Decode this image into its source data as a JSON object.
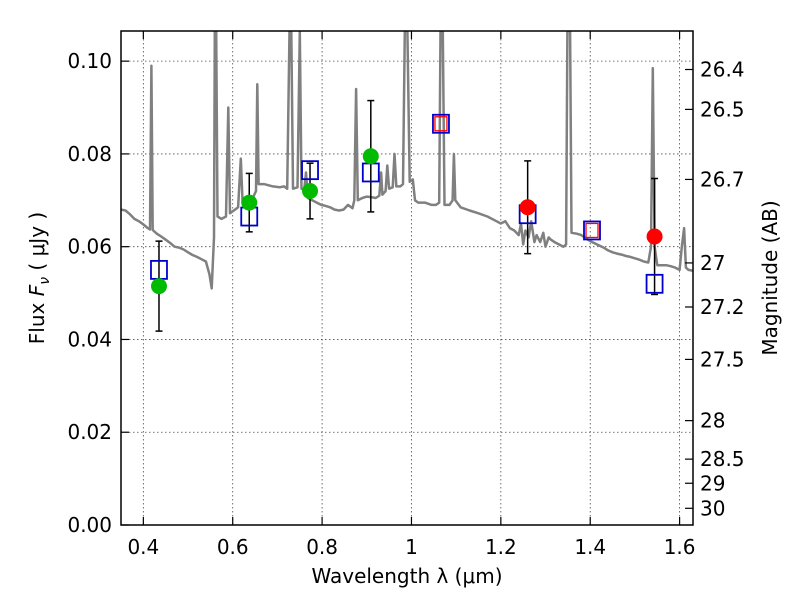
{
  "chart_data": {
    "type": "scatter",
    "xlabel": "Wavelength  λ (μm)",
    "ylabel": "Flux  F_ν  ( μJy )",
    "ylabel_parts": {
      "pre": "Flux  ",
      "sym": "F",
      "sub": "ν",
      "post": "  ( μJy )"
    },
    "ylabel_right": "Magnitude (AB)",
    "xlim": [
      0.35,
      1.63
    ],
    "ylim": [
      0.0,
      0.1065
    ],
    "grid": true,
    "x_ticks": [
      0.4,
      0.6,
      0.8,
      1.0,
      1.2,
      1.4,
      1.6
    ],
    "x_tick_labels": [
      "0.4",
      "0.6",
      "0.8",
      "1",
      "1.2",
      "1.4",
      "1.6"
    ],
    "y_ticks": [
      0.0,
      0.02,
      0.04,
      0.06,
      0.08,
      0.1
    ],
    "y_tick_labels": [
      "0.00",
      "0.02",
      "0.04",
      "0.06",
      "0.08",
      "0.10"
    ],
    "right_ticks": [
      {
        "label": "26.4",
        "flux": 0.0982
      },
      {
        "label": "26.5",
        "flux": 0.0896
      },
      {
        "label": "26.7",
        "flux": 0.0745
      },
      {
        "label": "27",
        "flux": 0.0565
      },
      {
        "label": "27.2",
        "flux": 0.047
      },
      {
        "label": "27.5",
        "flux": 0.0357
      },
      {
        "label": "28",
        "flux": 0.0225
      },
      {
        "label": "28.5",
        "flux": 0.0142
      },
      {
        "label": "29",
        "flux": 0.009
      },
      {
        "label": "30",
        "flux": 0.0036
      }
    ],
    "series": [
      {
        "kind": "points_with_errorbars",
        "color": "#00bb00",
        "points": [
          {
            "x": 0.435,
            "y": 0.0515,
            "err": 0.0097
          },
          {
            "x": 0.637,
            "y": 0.0695,
            "err": 0.0063
          },
          {
            "x": 0.773,
            "y": 0.072,
            "err": 0.006
          },
          {
            "x": 0.909,
            "y": 0.0795,
            "err": 0.012
          }
        ]
      },
      {
        "kind": "points_with_errorbars",
        "color": "#ff0000",
        "points": [
          {
            "x": 1.26,
            "y": 0.0685,
            "err": 0.01
          },
          {
            "x": 1.544,
            "y": 0.0622,
            "err": 0.0125
          }
        ]
      },
      {
        "kind": "open_squares",
        "color": "#0000cc",
        "points": [
          {
            "x": 0.435,
            "y": 0.055
          },
          {
            "x": 0.637,
            "y": 0.0665
          },
          {
            "x": 0.773,
            "y": 0.0765
          },
          {
            "x": 0.909,
            "y": 0.076
          },
          {
            "x": 1.066,
            "y": 0.0865
          },
          {
            "x": 1.26,
            "y": 0.067
          },
          {
            "x": 1.404,
            "y": 0.0635
          },
          {
            "x": 1.544,
            "y": 0.052
          }
        ]
      },
      {
        "kind": "open_squares_small_red",
        "color": "#ff0000",
        "points": [
          {
            "x": 1.066,
            "y": 0.0865
          },
          {
            "x": 1.404,
            "y": 0.0635
          }
        ]
      },
      {
        "kind": "line",
        "color": "#808080",
        "points": [
          [
            0.35,
            0.068
          ],
          [
            0.36,
            0.0678
          ],
          [
            0.37,
            0.067
          ],
          [
            0.38,
            0.066
          ],
          [
            0.39,
            0.0655
          ],
          [
            0.4,
            0.0648
          ],
          [
            0.41,
            0.064
          ],
          [
            0.415,
            0.0637
          ],
          [
            0.418,
            0.099
          ],
          [
            0.421,
            0.0636
          ],
          [
            0.43,
            0.0628
          ],
          [
            0.44,
            0.0622
          ],
          [
            0.45,
            0.0615
          ],
          [
            0.46,
            0.0608
          ],
          [
            0.47,
            0.06
          ],
          [
            0.48,
            0.0598
          ],
          [
            0.49,
            0.0594
          ],
          [
            0.5,
            0.0588
          ],
          [
            0.51,
            0.0582
          ],
          [
            0.52,
            0.0578
          ],
          [
            0.53,
            0.0573
          ],
          [
            0.54,
            0.0568
          ],
          [
            0.548,
            0.054
          ],
          [
            0.553,
            0.051
          ],
          [
            0.558,
            0.062
          ],
          [
            0.56,
            0.1065
          ],
          [
            0.563,
            0.1065
          ],
          [
            0.566,
            0.0665
          ],
          [
            0.575,
            0.066
          ],
          [
            0.585,
            0.0665
          ],
          [
            0.59,
            0.09
          ],
          [
            0.594,
            0.0672
          ],
          [
            0.605,
            0.068
          ],
          [
            0.612,
            0.0685
          ],
          [
            0.618,
            0.079
          ],
          [
            0.622,
            0.0695
          ],
          [
            0.63,
            0.07
          ],
          [
            0.645,
            0.0705
          ],
          [
            0.652,
            0.072
          ],
          [
            0.655,
            0.095
          ],
          [
            0.658,
            0.0735
          ],
          [
            0.67,
            0.0735
          ],
          [
            0.69,
            0.073
          ],
          [
            0.705,
            0.0728
          ],
          [
            0.715,
            0.073
          ],
          [
            0.722,
            0.0725
          ],
          [
            0.727,
            0.1065
          ],
          [
            0.731,
            0.1065
          ],
          [
            0.735,
            0.0725
          ],
          [
            0.745,
            0.0728
          ],
          [
            0.75,
            0.1065
          ],
          [
            0.754,
            0.0725
          ],
          [
            0.76,
            0.0722
          ],
          [
            0.764,
            0.076
          ],
          [
            0.768,
            0.0705
          ],
          [
            0.778,
            0.07
          ],
          [
            0.788,
            0.0695
          ],
          [
            0.798,
            0.069
          ],
          [
            0.808,
            0.0688
          ],
          [
            0.818,
            0.0685
          ],
          [
            0.828,
            0.068
          ],
          [
            0.838,
            0.0678
          ],
          [
            0.848,
            0.068
          ],
          [
            0.858,
            0.069
          ],
          [
            0.868,
            0.0683
          ],
          [
            0.872,
            0.07
          ],
          [
            0.876,
            0.094
          ],
          [
            0.88,
            0.07
          ],
          [
            0.89,
            0.0705
          ],
          [
            0.9,
            0.0708
          ],
          [
            0.91,
            0.0707
          ],
          [
            0.92,
            0.0705
          ],
          [
            0.928,
            0.071
          ],
          [
            0.932,
            0.076
          ],
          [
            0.935,
            0.0712
          ],
          [
            0.942,
            0.072
          ],
          [
            0.946,
            0.0775
          ],
          [
            0.95,
            0.0725
          ],
          [
            0.958,
            0.0728
          ],
          [
            0.962,
            0.08
          ],
          [
            0.966,
            0.073
          ],
          [
            0.975,
            0.073
          ],
          [
            0.981,
            0.0735
          ],
          [
            0.985,
            0.1065
          ],
          [
            0.991,
            0.1065
          ],
          [
            0.996,
            0.074
          ],
          [
            1.003,
            0.0745
          ],
          [
            1.008,
            0.07
          ],
          [
            1.015,
            0.0695
          ],
          [
            1.03,
            0.0695
          ],
          [
            1.045,
            0.069
          ],
          [
            1.055,
            0.069
          ],
          [
            1.062,
            0.0695
          ],
          [
            1.065,
            0.1065
          ],
          [
            1.07,
            0.1065
          ],
          [
            1.074,
            0.069
          ],
          [
            1.085,
            0.069
          ],
          [
            1.092,
            0.07
          ],
          [
            1.095,
            0.08
          ],
          [
            1.098,
            0.07
          ],
          [
            1.11,
            0.0685
          ],
          [
            1.13,
            0.0678
          ],
          [
            1.15,
            0.0672
          ],
          [
            1.17,
            0.0665
          ],
          [
            1.19,
            0.0655
          ],
          [
            1.2,
            0.065
          ],
          [
            1.21,
            0.0655
          ],
          [
            1.22,
            0.064
          ],
          [
            1.23,
            0.0635
          ],
          [
            1.24,
            0.0625
          ],
          [
            1.245,
            0.065
          ],
          [
            1.25,
            0.0605
          ],
          [
            1.255,
            0.0635
          ],
          [
            1.262,
            0.062
          ],
          [
            1.268,
            0.0655
          ],
          [
            1.275,
            0.061
          ],
          [
            1.28,
            0.0625
          ],
          [
            1.288,
            0.061
          ],
          [
            1.295,
            0.063
          ],
          [
            1.3,
            0.06
          ],
          [
            1.307,
            0.062
          ],
          [
            1.312,
            0.0615
          ],
          [
            1.32,
            0.061
          ],
          [
            1.33,
            0.0605
          ],
          [
            1.34,
            0.06
          ],
          [
            1.346,
            0.0605
          ],
          [
            1.349,
            0.1065
          ],
          [
            1.355,
            0.1065
          ],
          [
            1.358,
            0.063
          ],
          [
            1.37,
            0.0628
          ],
          [
            1.38,
            0.0625
          ],
          [
            1.39,
            0.0618
          ],
          [
            1.4,
            0.0612
          ],
          [
            1.415,
            0.0605
          ],
          [
            1.43,
            0.0598
          ],
          [
            1.44,
            0.0592
          ],
          [
            1.45,
            0.0588
          ],
          [
            1.46,
            0.0585
          ],
          [
            1.47,
            0.0583
          ],
          [
            1.48,
            0.058
          ],
          [
            1.49,
            0.0578
          ],
          [
            1.5,
            0.0575
          ],
          [
            1.51,
            0.0572
          ],
          [
            1.52,
            0.0568
          ],
          [
            1.53,
            0.0566
          ],
          [
            1.536,
            0.06
          ],
          [
            1.54,
            0.0985
          ],
          [
            1.544,
            0.06
          ],
          [
            1.55,
            0.056
          ],
          [
            1.56,
            0.056
          ],
          [
            1.57,
            0.056
          ],
          [
            1.58,
            0.0558
          ],
          [
            1.59,
            0.0555
          ],
          [
            1.6,
            0.055
          ],
          [
            1.605,
            0.06
          ],
          [
            1.61,
            0.064
          ],
          [
            1.614,
            0.0555
          ],
          [
            1.62,
            0.055
          ],
          [
            1.63,
            0.0548
          ]
        ]
      }
    ]
  }
}
